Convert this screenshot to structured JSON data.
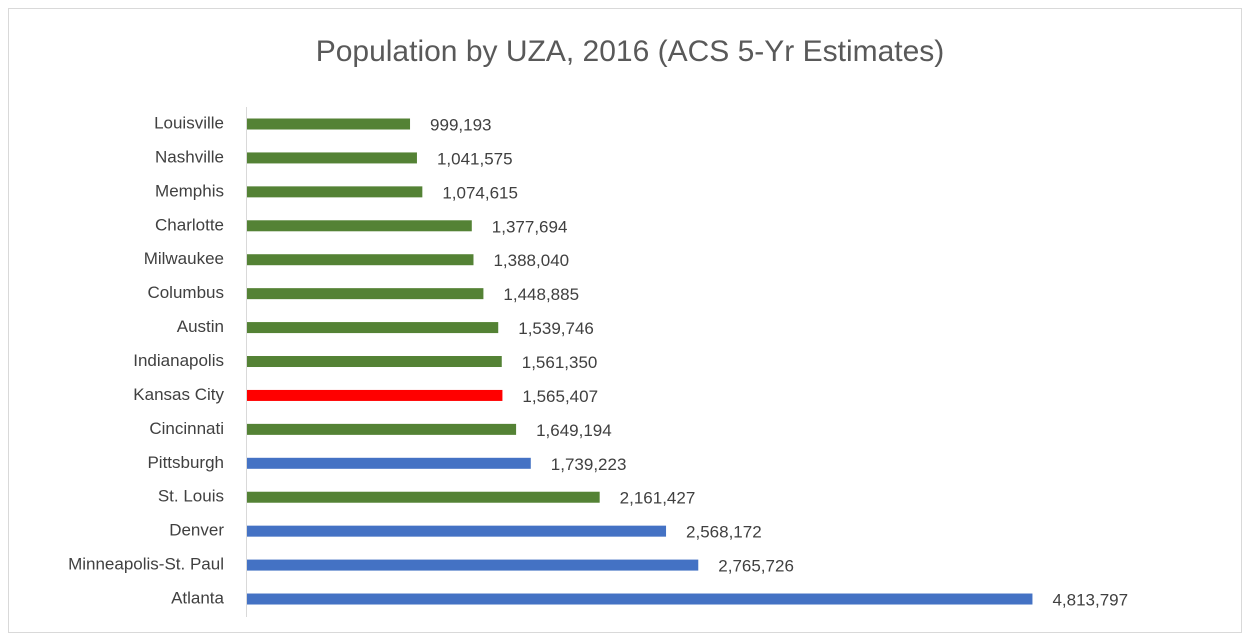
{
  "chart_data": {
    "type": "hbar",
    "title": "Population by UZA, 2016 (ACS 5-Yr Estimates)",
    "categories": [
      "Louisville",
      "Nashville",
      "Memphis",
      "Charlotte",
      "Milwaukee",
      "Columbus",
      "Austin",
      "Indianapolis",
      "Kansas City",
      "Cincinnati",
      "Pittsburgh",
      "St. Louis",
      "Denver",
      "Minneapolis-St. Paul",
      "Atlanta"
    ],
    "values": [
      999193,
      1041575,
      1074615,
      1377694,
      1388040,
      1448885,
      1539746,
      1561350,
      1565407,
      1649194,
      1739223,
      2161427,
      2568172,
      2765726,
      4813797
    ],
    "value_labels": [
      "999,193",
      "1,041,575",
      "1,074,615",
      "1,377,694",
      "1,388,040",
      "1,448,885",
      "1,539,746",
      "1,561,350",
      "1,565,407",
      "1,649,194",
      "1,739,223",
      "2,161,427",
      "2,568,172",
      "2,765,726",
      "4,813,797"
    ],
    "colors": [
      "#548235",
      "#548235",
      "#548235",
      "#548235",
      "#548235",
      "#548235",
      "#548235",
      "#548235",
      "#ff0000",
      "#548235",
      "#4472c4",
      "#548235",
      "#4472c4",
      "#4472c4",
      "#4472c4"
    ],
    "xlim": [
      0,
      6000000
    ]
  }
}
